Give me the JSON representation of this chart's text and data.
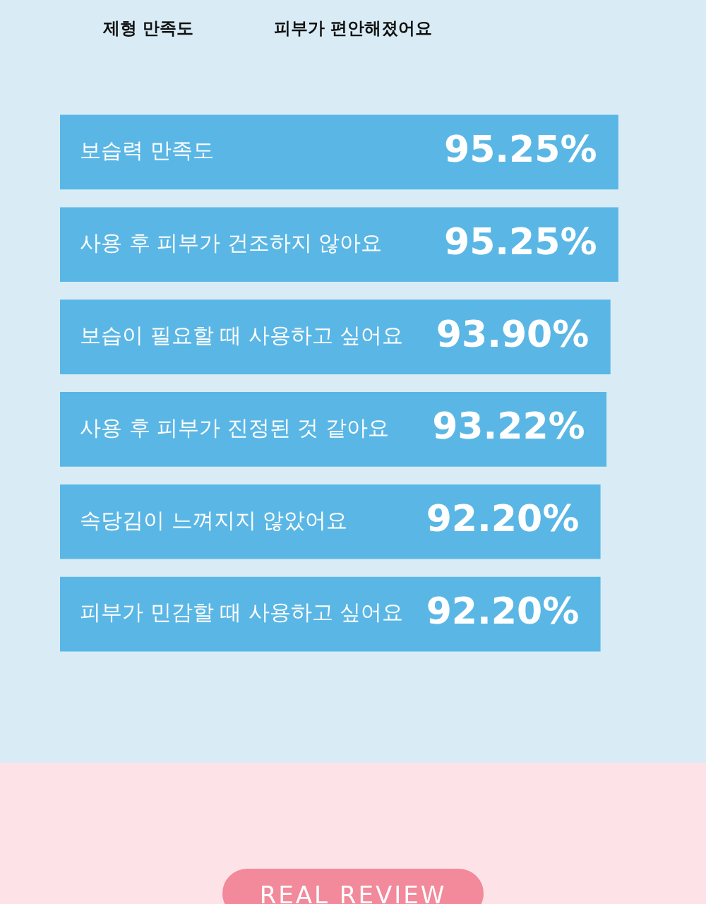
{
  "chart_data": {
    "type": "bar",
    "orientation": "horizontal",
    "categories": [
      "보습력 만족도",
      "사용 후 피부가 건조하지 않아요",
      "보습이 필요할 때 사용하고 싶어요",
      "사용 후 피부가 진정된 것 같아요",
      "속당김이 느껴지지 않았어요",
      "피부가 민감할 때 사용하고 싶어요"
    ],
    "values": [
      95.25,
      95.25,
      93.9,
      93.22,
      92.2,
      92.2
    ],
    "value_labels": [
      "95.25%",
      "95.25%",
      "93.90%",
      "93.22%",
      "92.20%",
      "92.20%"
    ],
    "color": "#5ab7e5",
    "annotations": [
      "제형 만족도",
      "피부가 편안해졌어요",
      "REAL REVIEW"
    ]
  }
}
